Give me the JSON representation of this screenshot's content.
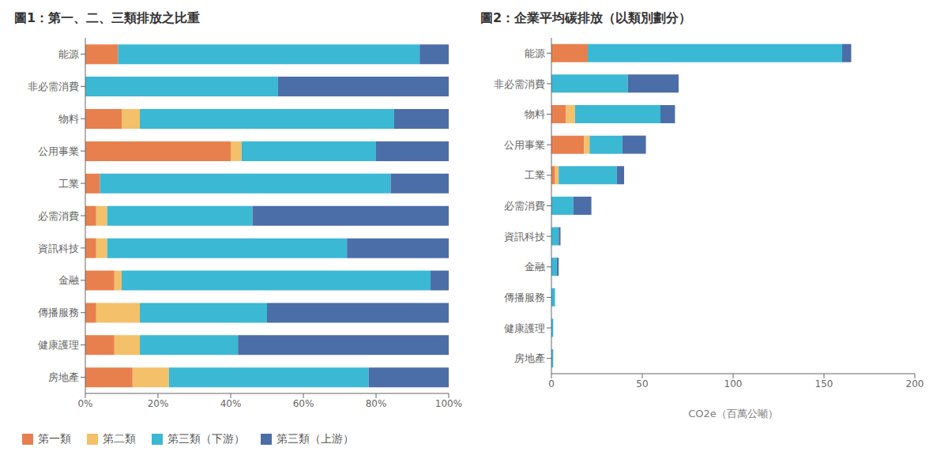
{
  "chart_data": [
    {
      "type": "bar",
      "title": "圖1：第一、二、三類排放之比重",
      "orientation": "horizontal",
      "stacked": true,
      "grid": false,
      "legend": "lower left",
      "categories": [
        "房地產",
        "健康護理",
        "傳播服務",
        "金融",
        "資訊科技",
        "必需消費",
        "工業",
        "公用事業",
        "物料",
        "非必需消費",
        "能源"
      ],
      "series": [
        {
          "name": "第一類",
          "color": "#E8804E",
          "values": [
            13,
            8,
            3,
            8,
            3,
            3,
            4,
            40,
            10,
            0,
            9
          ]
        },
        {
          "name": "第二類",
          "color": "#F5C06A",
          "values": [
            10,
            7,
            12,
            2,
            3,
            3,
            0,
            3,
            5,
            0,
            0
          ]
        },
        {
          "name": "第三類（下游）",
          "color": "#3BB8D4",
          "values": [
            55,
            27,
            35,
            85,
            66,
            40,
            80,
            37,
            70,
            53,
            83
          ]
        },
        {
          "name": "第三類（上游）",
          "color": "#4B6EA8",
          "values": [
            22,
            58,
            50,
            5,
            28,
            54,
            16,
            20,
            15,
            47,
            8
          ]
        }
      ],
      "xlim": [
        0,
        100
      ],
      "xticks": [
        {
          "value": 0,
          "label": "0%"
        },
        {
          "value": 20,
          "label": "20%"
        },
        {
          "value": 40,
          "label": "40%"
        },
        {
          "value": 60,
          "label": "60%"
        },
        {
          "value": 80,
          "label": "80%"
        },
        {
          "value": 100,
          "label": "100%"
        }
      ]
    },
    {
      "type": "bar",
      "title": "圖2：企業平均碳排放（以類別劃分）",
      "orientation": "horizontal",
      "stacked": true,
      "grid": false,
      "xlabel": "CO2e（百萬公噸）",
      "categories": [
        "房地產",
        "健康護理",
        "傳播服務",
        "金融",
        "資訊科技",
        "必需消費",
        "工業",
        "公用事業",
        "物料",
        "非必需消費",
        "能源"
      ],
      "series": [
        {
          "color": "#E8804E",
          "values": [
            0,
            0,
            0,
            0,
            0,
            0,
            2,
            18,
            8,
            0,
            20
          ]
        },
        {
          "color": "#F5C06A",
          "values": [
            0,
            0,
            0,
            0,
            0,
            0,
            2,
            3,
            5,
            0,
            0
          ]
        },
        {
          "color": "#3BB8D4",
          "values": [
            1,
            1,
            2,
            3,
            4,
            12,
            32,
            18,
            47,
            42,
            140
          ]
        },
        {
          "color": "#4B6EA8",
          "values": [
            0,
            0,
            0,
            1,
            1,
            10,
            4,
            13,
            8,
            28,
            5
          ]
        }
      ],
      "xlim": [
        0,
        200
      ],
      "xticks": [
        0,
        50,
        100,
        150,
        200
      ]
    }
  ]
}
